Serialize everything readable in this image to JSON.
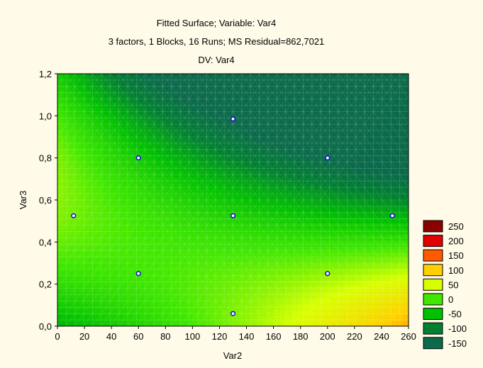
{
  "chart_data": {
    "type": "heatmap",
    "title_lines": [
      "Fitted Surface; Variable: Var4",
      "3 factors, 1 Blocks, 16 Runs; MS Residual=862,7021",
      "DV: Var4"
    ],
    "xlabel": "Var2",
    "ylabel": "Var3",
    "xlim": [
      0,
      260
    ],
    "ylim": [
      0,
      1.2
    ],
    "x_ticks": [
      "0",
      "20",
      "40",
      "60",
      "80",
      "100",
      "120",
      "140",
      "160",
      "180",
      "200",
      "220",
      "240",
      "260"
    ],
    "y_ticks": [
      "0,0",
      "0,2",
      "0,4",
      "0,6",
      "0,8",
      "1,0",
      "1,2"
    ],
    "points": [
      {
        "x": 12,
        "y": 0.525
      },
      {
        "x": 60,
        "y": 0.8
      },
      {
        "x": 60,
        "y": 0.25
      },
      {
        "x": 130,
        "y": 0.985
      },
      {
        "x": 130,
        "y": 0.525
      },
      {
        "x": 130,
        "y": 0.525
      },
      {
        "x": 130,
        "y": 0.06
      },
      {
        "x": 200,
        "y": 0.8
      },
      {
        "x": 200,
        "y": 0.25
      },
      {
        "x": 248,
        "y": 0.525
      }
    ],
    "legend": {
      "placement": "right",
      "entries": [
        {
          "label": "250",
          "color": "#8b0000"
        },
        {
          "label": "200",
          "color": "#e00000"
        },
        {
          "label": "150",
          "color": "#ff5a00"
        },
        {
          "label": "100",
          "color": "#ffd000"
        },
        {
          "label": "50",
          "color": "#d8ff00"
        },
        {
          "label": "0",
          "color": "#40e800"
        },
        {
          "label": "-50",
          "color": "#00c000"
        },
        {
          "label": "-100",
          "color": "#008030"
        },
        {
          "label": "-150",
          "color": "#0a6a4a"
        }
      ]
    },
    "grid": true
  }
}
